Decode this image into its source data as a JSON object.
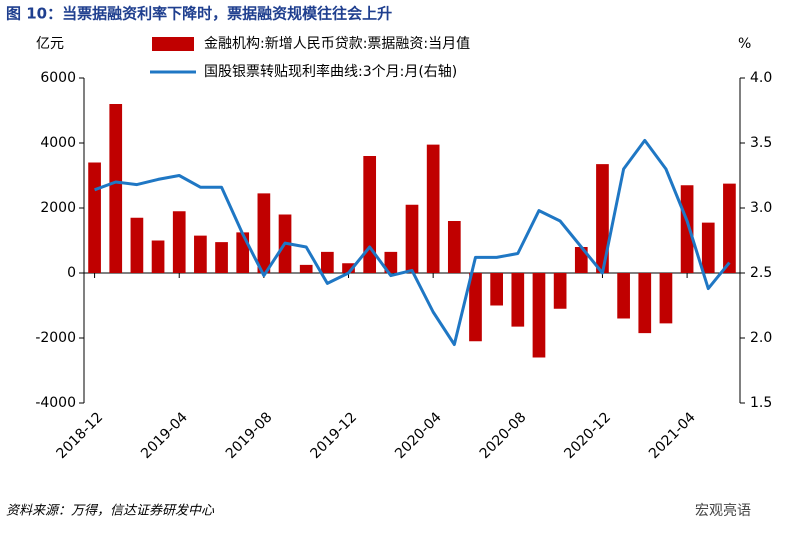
{
  "chart_data": {
    "type": "bar_line",
    "title": "图 10：当票据融资利率下降时，票据融资规模往往会上升",
    "y_label": "亿元",
    "y2_label": "%",
    "source": "资料来源：万得，信达证券研发中心",
    "watermark": "宏观亮语",
    "categories": [
      "2018-12",
      null,
      null,
      null,
      "2019-04",
      null,
      null,
      null,
      "2019-08",
      null,
      null,
      null,
      "2019-12",
      null,
      null,
      null,
      "2020-04",
      null,
      null,
      null,
      "2020-08",
      null,
      null,
      null,
      "2020-12",
      null,
      null,
      null,
      "2021-04",
      null,
      null
    ],
    "series": [
      {
        "name": "金融机构:新增人民币贷款:票据融资:当月值",
        "color": "#c00000",
        "kind": "bar",
        "values": [
          3400,
          5200,
          1700,
          1000,
          1900,
          1150,
          950,
          1250,
          2450,
          1800,
          250,
          650,
          300,
          3600,
          650,
          2100,
          3950,
          1600,
          -2100,
          -1000,
          -1650,
          -2600,
          -1100,
          800,
          3350,
          -1400,
          -1850,
          -1550,
          2700,
          1550,
          2750
        ]
      },
      {
        "name": "国股银票转贴现利率曲线:3个月:月(右轴)",
        "color": "#1f77c4",
        "kind": "line",
        "axis": "y2",
        "values": [
          3.14,
          3.2,
          3.18,
          3.22,
          3.25,
          3.16,
          3.16,
          2.8,
          2.48,
          2.73,
          2.7,
          2.42,
          2.5,
          2.7,
          2.48,
          2.52,
          2.2,
          1.95,
          2.62,
          2.62,
          2.65,
          2.98,
          2.9,
          2.7,
          2.5,
          3.3,
          3.52,
          3.3,
          2.9,
          2.38,
          2.58
        ]
      }
    ],
    "ylim": [
      -4000,
      6000
    ],
    "yticks": [
      -4000,
      -2000,
      0,
      2000,
      4000,
      6000
    ],
    "y2lim": [
      1.5,
      4.0
    ],
    "y2ticks": [
      1.5,
      {
        "value": 2.0,
        "label": "2.0"
      },
      2.5,
      {
        "value": 3.0,
        "label": "3.0"
      },
      3.5,
      {
        "value": 4.0,
        "label": "4.0"
      }
    ]
  }
}
